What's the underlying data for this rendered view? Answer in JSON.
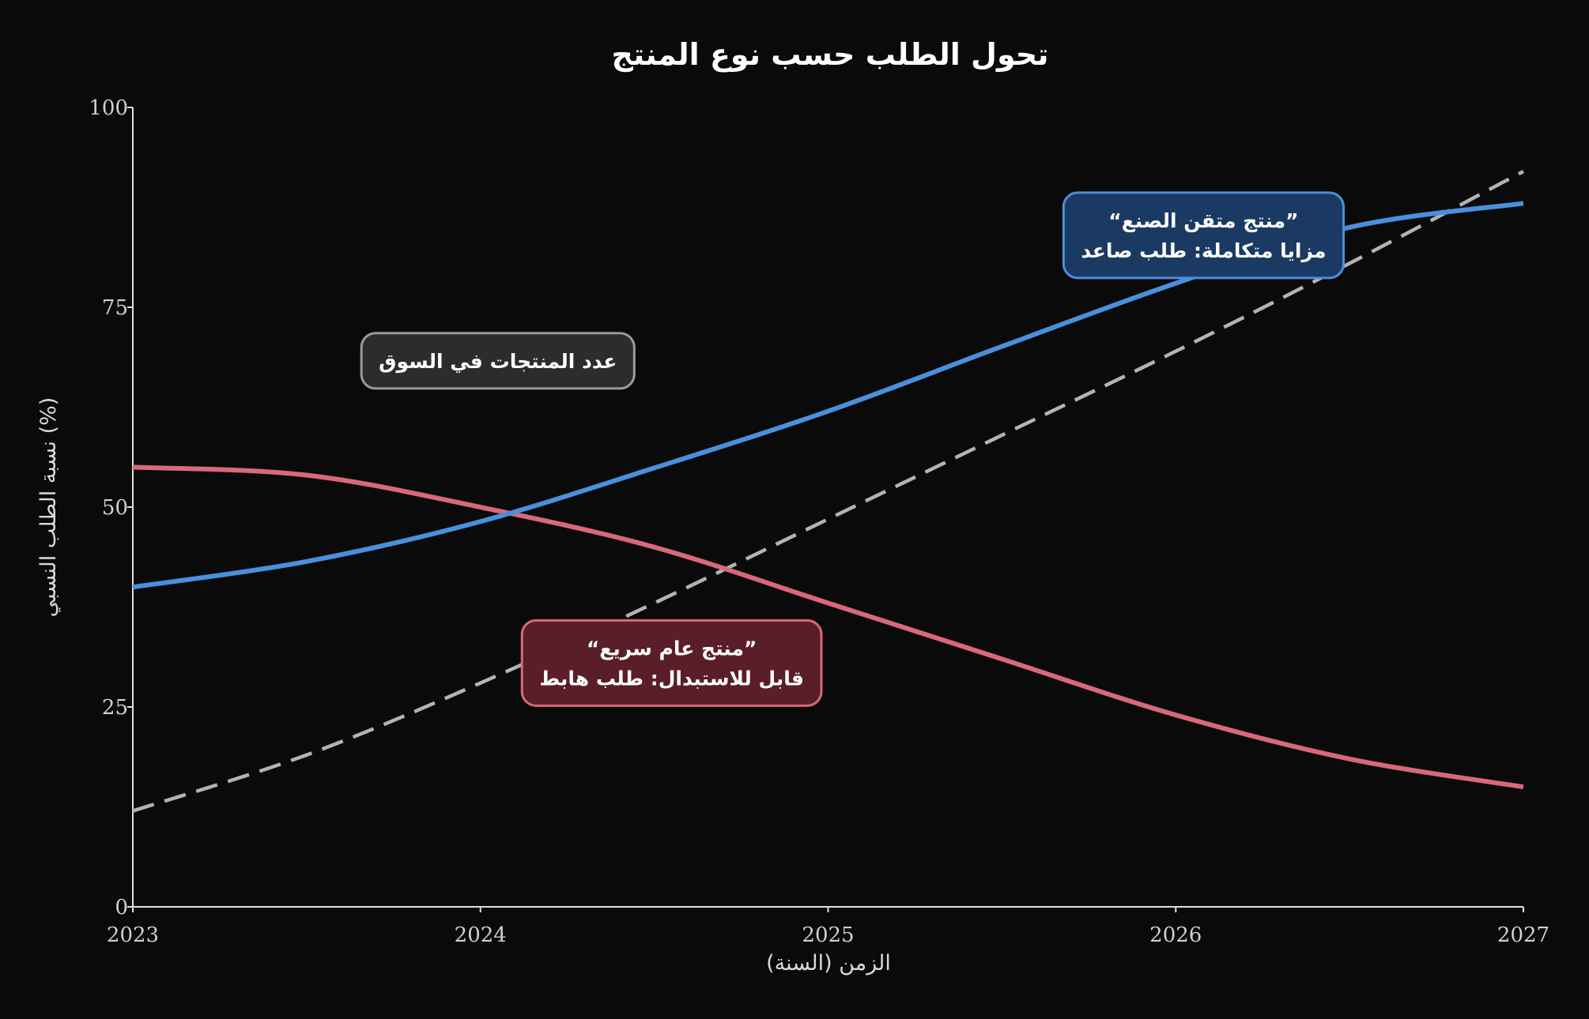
{
  "colors": {
    "background": "#0a0a0a",
    "axis": "#e0e0e0",
    "premium": "#4a8fdc",
    "fast": "#d9687a",
    "market": "#b3b3b3",
    "premium_box_fill": "#1b3a63",
    "fast_box_fill": "#5a1e28",
    "market_box_fill": "#2c2c2c",
    "market_box_stroke": "#9a9a9a"
  },
  "chart_data": {
    "type": "line",
    "title": "تحول الطلب حسب نوع المنتج",
    "xlabel": "الزمن (السنة)",
    "ylabel": "نسبة الطلب النسبي (%)",
    "xlim": [
      2023,
      2027
    ],
    "ylim": [
      0,
      100
    ],
    "x_ticks": [
      "2023",
      "2024",
      "2025",
      "2026",
      "2027"
    ],
    "y_ticks": [
      "0",
      "25",
      "50",
      "75",
      "100"
    ],
    "grid": false,
    "legend": "none",
    "series": [
      {
        "key": "premium",
        "style": "solid",
        "x": [
          2023.0,
          2023.5,
          2024.0,
          2024.5,
          2025.0,
          2025.5,
          2026.0,
          2026.5,
          2027.0
        ],
        "y": [
          40.0,
          43.2,
          48.2,
          54.9,
          62.0,
          70.1,
          78.0,
          85.0,
          88.0
        ]
      },
      {
        "key": "fast",
        "style": "solid",
        "x": [
          2023.0,
          2023.5,
          2024.0,
          2024.5,
          2025.0,
          2025.5,
          2026.0,
          2026.5,
          2027.0
        ],
        "y": [
          55.0,
          54.0,
          50.0,
          45.0,
          38.0,
          31.0,
          24.0,
          18.5,
          15.0
        ]
      },
      {
        "key": "market",
        "style": "dashed",
        "x": [
          2023.0,
          2023.5,
          2024.0,
          2024.5,
          2025.0,
          2025.5,
          2026.0,
          2026.5,
          2027.0
        ],
        "y": [
          12.0,
          19.0,
          28.0,
          38.0,
          48.5,
          59.0,
          69.5,
          80.5,
          92.0
        ]
      }
    ],
    "annotations": [
      {
        "key": "premium",
        "lines": [
          "“منتج متقن الصنع”",
          "مزايا متكاملة: طلب صاعد"
        ],
        "x": 2026.08,
        "y": 84.0
      },
      {
        "key": "fast",
        "lines": [
          "“منتج عام سريع”",
          "قابل للاستبدال: طلب هابط"
        ],
        "x": 2024.55,
        "y": 30.5
      },
      {
        "key": "market",
        "lines": [
          "عدد المنتجات في السوق"
        ],
        "x": 2024.05,
        "y": 68.3
      }
    ]
  }
}
